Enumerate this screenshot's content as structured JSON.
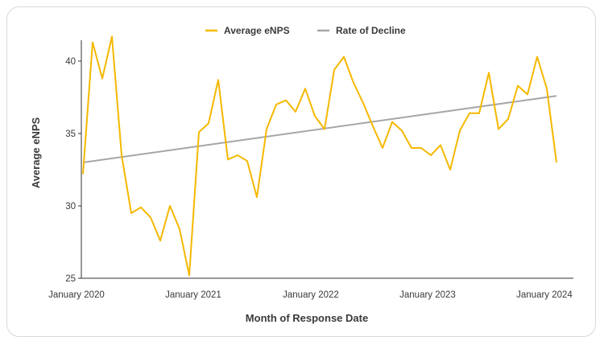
{
  "chart_data": {
    "type": "line",
    "xlabel": "Month of Response Date",
    "ylabel": "Average eNPS",
    "ylim": [
      25,
      41.5
    ],
    "yticks": [
      "25",
      "30",
      "35",
      "40"
    ],
    "xticks": [
      "January 2020",
      "January 2021",
      "January 2022",
      "January 2023",
      "January 2024"
    ],
    "legend_position": "top-center",
    "colors": {
      "enps": "#f5b800",
      "trend": "#a6a6a6"
    },
    "series": [
      {
        "name": "Average eNPS",
        "x": [
          "2020-01",
          "2020-02",
          "2020-03",
          "2020-04",
          "2020-05",
          "2020-06",
          "2020-07",
          "2020-08",
          "2020-09",
          "2020-10",
          "2020-11",
          "2020-12",
          "2021-01",
          "2021-02",
          "2021-03",
          "2021-04",
          "2021-05",
          "2021-06",
          "2021-07",
          "2021-08",
          "2021-09",
          "2021-10",
          "2021-11",
          "2021-12",
          "2022-01",
          "2022-02",
          "2022-03",
          "2022-04",
          "2022-05",
          "2022-06",
          "2022-07",
          "2022-08",
          "2022-09",
          "2022-10",
          "2022-11",
          "2022-12",
          "2023-01",
          "2023-02",
          "2023-03",
          "2023-04",
          "2023-05",
          "2023-06",
          "2023-07",
          "2023-08",
          "2023-09",
          "2023-10",
          "2023-11",
          "2023-12",
          "2024-01",
          "2024-02"
        ],
        "values": [
          32.2,
          41.3,
          38.8,
          41.7,
          33.5,
          29.5,
          29.9,
          29.2,
          27.6,
          30.0,
          28.4,
          25.2,
          35.1,
          35.7,
          38.7,
          33.2,
          33.5,
          33.1,
          30.6,
          35.3,
          37.0,
          37.3,
          36.5,
          38.1,
          36.2,
          35.3,
          39.4,
          40.3,
          38.5,
          37.1,
          35.5,
          34.0,
          35.8,
          35.2,
          34.0,
          34.0,
          33.5,
          34.2,
          32.5,
          35.2,
          36.4,
          36.4,
          39.2,
          35.3,
          36.0,
          38.3,
          37.7,
          40.3,
          38.1,
          33.0
        ]
      },
      {
        "name": "Rate of Decline",
        "x": [
          "2020-01",
          "2024-02"
        ],
        "values": [
          33.0,
          37.6
        ]
      }
    ]
  }
}
